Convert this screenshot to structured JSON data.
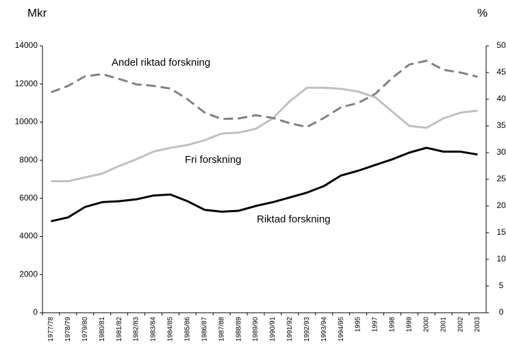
{
  "chart_data": {
    "type": "line",
    "y_axis_label": "Mkr",
    "y2_axis_label": "%",
    "categories": [
      "1977/78",
      "1978/79",
      "1979/80",
      "1980/81",
      "1981/82",
      "1982/83",
      "1983/84",
      "1984/85",
      "1985/86",
      "1986/87",
      "1987/88",
      "1988/89",
      "1989/90",
      "1990/91",
      "1991/92",
      "1992/93",
      "1993/94",
      "1994/95",
      "1995",
      "1997",
      "1998",
      "1999",
      "2000",
      "2001",
      "2002",
      "2003"
    ],
    "series": [
      {
        "name": "Riktad forskning",
        "color": "#000000",
        "dash": false,
        "values": [
          4800,
          5000,
          5550,
          5800,
          5850,
          5950,
          6150,
          6200,
          5850,
          5400,
          5300,
          5350,
          5600,
          5800,
          6050,
          6300,
          6650,
          7200,
          7450,
          7750,
          8050,
          8400,
          8650,
          8450,
          8450,
          8300
        ]
      },
      {
        "name": "Fri forskning",
        "color": "#c0c0c0",
        "dash": false,
        "values": [
          6900,
          6900,
          7100,
          7300,
          7700,
          8050,
          8450,
          8650,
          8800,
          9050,
          9400,
          9450,
          9650,
          10200,
          11100,
          11800,
          11800,
          11750,
          11600,
          11300,
          10550,
          9800,
          9700,
          10200,
          10500,
          10600
        ]
      },
      {
        "name": "Andel riktad forskning",
        "color": "#808080",
        "dash": true,
        "axis": "y2",
        "values": [
          41.3,
          42.5,
          44.3,
          44.7,
          43.8,
          42.8,
          42.5,
          42,
          40,
          37.5,
          36.3,
          36.4,
          37,
          36.5,
          35.5,
          34.8,
          36.5,
          38.5,
          39.3,
          41,
          44,
          46.5,
          47.2,
          45.5,
          45,
          44.2
        ]
      }
    ],
    "ylim": [
      0,
      14000
    ],
    "yticks": [
      0,
      2000,
      4000,
      6000,
      8000,
      10000,
      12000,
      14000
    ],
    "y2lim": [
      0,
      50
    ],
    "y2ticks": [
      0,
      5,
      10,
      15,
      20,
      25,
      30,
      35,
      40,
      45,
      50
    ],
    "grid": false
  }
}
